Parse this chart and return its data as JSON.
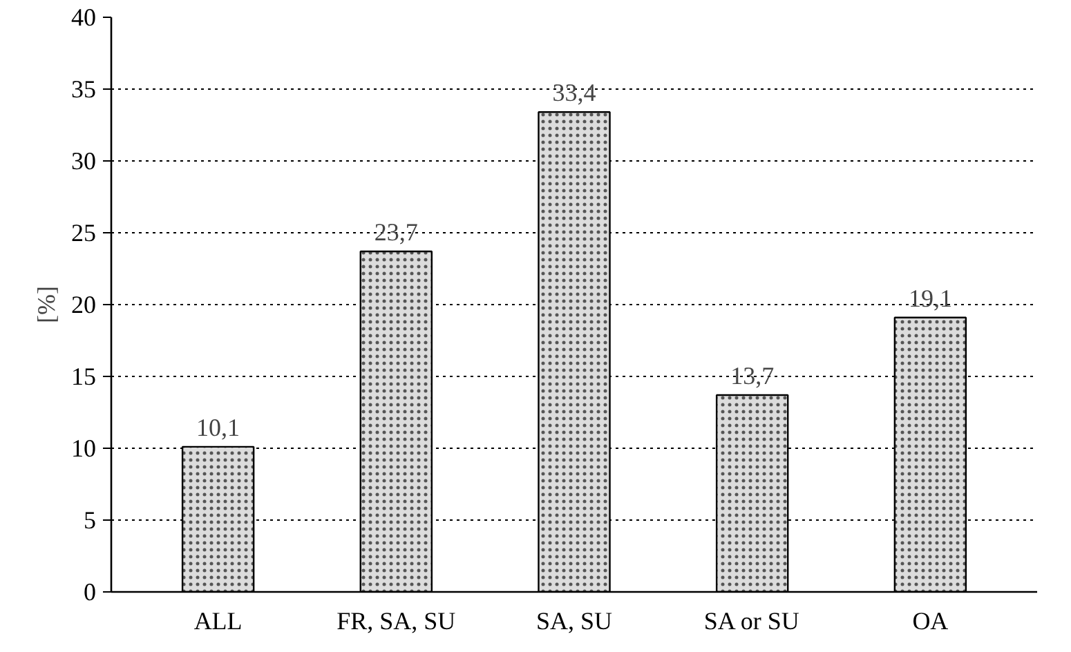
{
  "chart_data": {
    "type": "bar",
    "ylabel": "[%]",
    "categories": [
      "ALL",
      "FR, SA, SU",
      "SA, SU",
      "SA or SU",
      "OA"
    ],
    "values": [
      10.1,
      23.7,
      33.4,
      13.7,
      19.1
    ],
    "value_labels": [
      "10,1",
      "23,7",
      "33,4",
      "13,7",
      "19,1"
    ],
    "color": "#dcdcdc",
    "ylim": [
      0,
      40
    ],
    "yticks": [
      0,
      5,
      10,
      15,
      20,
      25,
      30,
      35,
      40
    ],
    "grid": "y",
    "line_style": "dotted"
  }
}
